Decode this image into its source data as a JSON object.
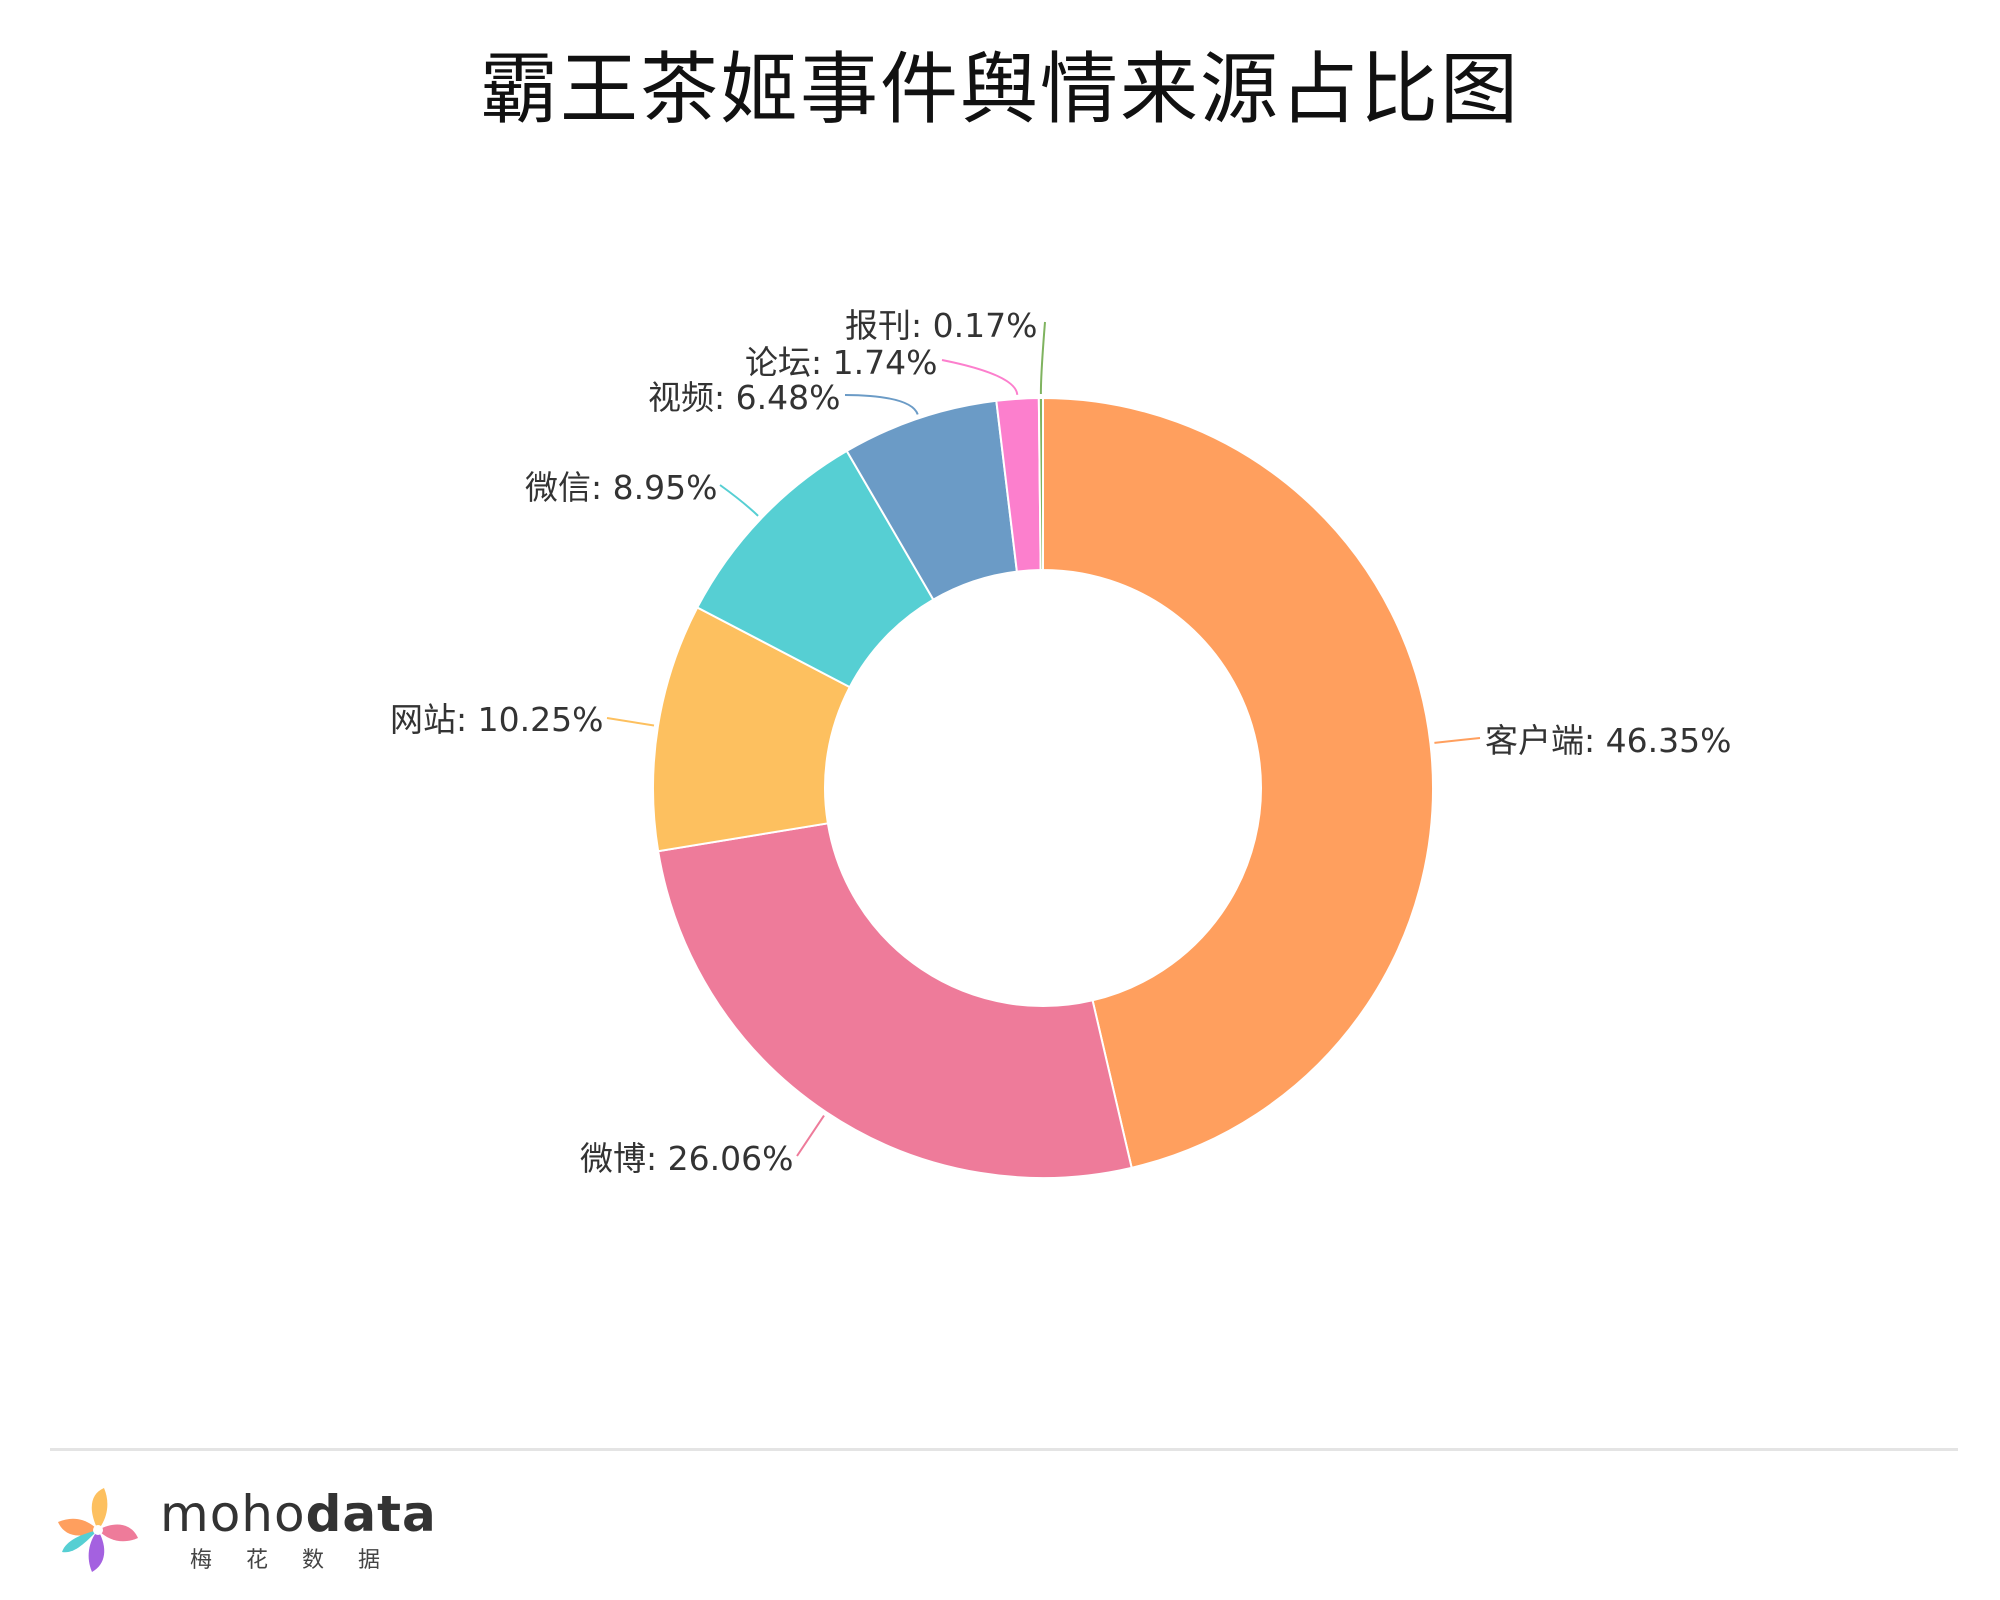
{
  "chart_data": {
    "type": "pie",
    "title": "霸王茶姬事件舆情来源占比图",
    "subtitle": "",
    "xlabel": "",
    "ylabel": "",
    "donut": true,
    "legend": "none",
    "slices": [
      {
        "label": "客户端",
        "value": 46.35,
        "display": "客户端: 46.35%",
        "color": "#FF9F5E"
      },
      {
        "label": "微博",
        "value": 26.06,
        "display": "微博: 26.06%",
        "color": "#EE7B9A"
      },
      {
        "label": "网站",
        "value": 10.25,
        "display": "网站: 10.25%",
        "color": "#FDC05F"
      },
      {
        "label": "微信",
        "value": 8.95,
        "display": "微信: 8.95%",
        "color": "#56CFD3"
      },
      {
        "label": "视频",
        "value": 6.48,
        "display": "视频: 6.48%",
        "color": "#6B9BC6"
      },
      {
        "label": "论坛",
        "value": 1.74,
        "display": "论坛: 1.74%",
        "color": "#FC7FCD"
      },
      {
        "label": "报刊",
        "value": 0.17,
        "display": "报刊: 0.17%",
        "color": "#7FB35F"
      }
    ]
  },
  "footer": {
    "brand_prefix": "moho",
    "brand_suffix": "data",
    "brand_subtitle": "梅花数据"
  }
}
